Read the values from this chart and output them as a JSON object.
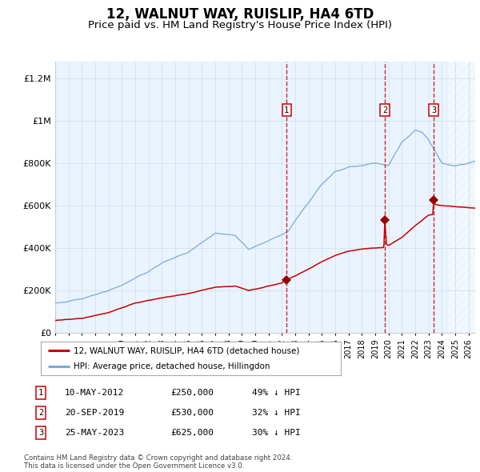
{
  "title": "12, WALNUT WAY, RUISLIP, HA4 6TD",
  "subtitle": "Price paid vs. HM Land Registry's House Price Index (HPI)",
  "ylabel_ticks": [
    "£0",
    "£200K",
    "£400K",
    "£600K",
    "£800K",
    "£1M",
    "£1.2M"
  ],
  "ytick_vals": [
    0,
    200000,
    400000,
    600000,
    800000,
    1000000,
    1200000
  ],
  "ylim": [
    0,
    1280000
  ],
  "xlim_start": 1995.0,
  "xlim_end": 2026.5,
  "hpi_color": "#7aaadd",
  "hpi_fill_color": "#ddeeff",
  "price_color": "#cc0000",
  "sale_marker_color": "#990000",
  "sale_dates": [
    2012.36,
    2019.72,
    2023.39
  ],
  "sale_prices": [
    250000,
    530000,
    625000
  ],
  "sale_labels": [
    "1",
    "2",
    "3"
  ],
  "legend_label_price": "12, WALNUT WAY, RUISLIP, HA4 6TD (detached house)",
  "legend_label_hpi": "HPI: Average price, detached house, Hillingdon",
  "table_rows": [
    [
      "1",
      "10-MAY-2012",
      "£250,000",
      "49% ↓ HPI"
    ],
    [
      "2",
      "20-SEP-2019",
      "£530,000",
      "32% ↓ HPI"
    ],
    [
      "3",
      "25-MAY-2023",
      "£625,000",
      "30% ↓ HPI"
    ]
  ],
  "footnote": "Contains HM Land Registry data © Crown copyright and database right 2024.\nThis data is licensed under the Open Government Licence v3.0.",
  "hatch_start": 2024.4,
  "background_color": "#ffffff",
  "grid_color": "#cccccc",
  "title_fontsize": 12,
  "subtitle_fontsize": 9.5,
  "tick_fontsize": 8
}
